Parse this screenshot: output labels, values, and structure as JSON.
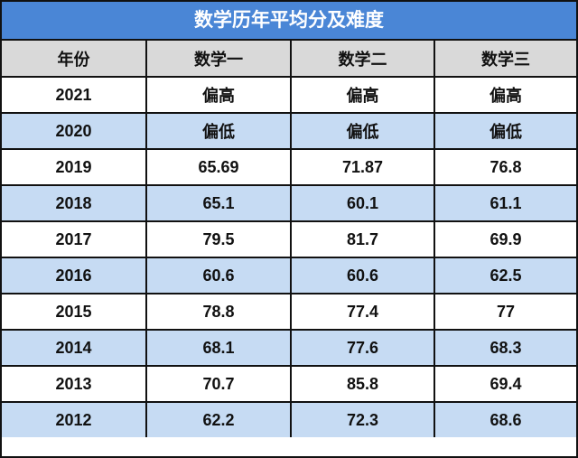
{
  "title": "数学历年平均分及难度",
  "columns": [
    "年份",
    "数学一",
    "数学二",
    "数学三"
  ],
  "rows": [
    [
      "2021",
      "偏高",
      "偏高",
      "偏高"
    ],
    [
      "2020",
      "偏低",
      "偏低",
      "偏低"
    ],
    [
      "2019",
      "65.69",
      "71.87",
      "76.8"
    ],
    [
      "2018",
      "65.1",
      "60.1",
      "61.1"
    ],
    [
      "2017",
      "79.5",
      "81.7",
      "69.9"
    ],
    [
      "2016",
      "60.6",
      "60.6",
      "62.5"
    ],
    [
      "2015",
      "78.8",
      "77.4",
      "77"
    ],
    [
      "2014",
      "68.1",
      "77.6",
      "68.3"
    ],
    [
      "2013",
      "70.7",
      "85.8",
      "69.4"
    ],
    [
      "2012",
      "62.2",
      "72.3",
      "68.6"
    ]
  ],
  "colors": {
    "title_bg": "#4a86d6",
    "header_bg": "#d9d9d9",
    "alt_row_bg": "#c6dbf3"
  }
}
